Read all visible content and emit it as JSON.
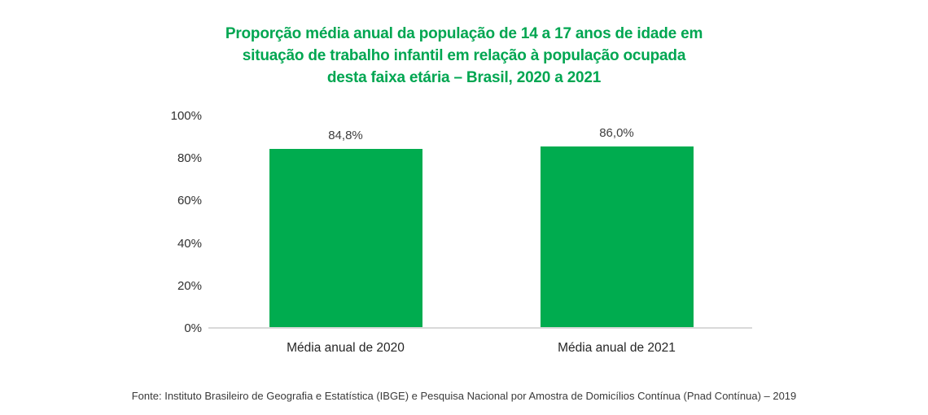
{
  "title": {
    "lines": [
      "Proporção média anual da população de 14 a 17 anos de idade em",
      "situação de trabalho infantil em relação à população ocupada",
      "desta faixa etária – Brasil, 2020 a 2021"
    ],
    "color": "#00a651"
  },
  "chart_data": {
    "type": "bar",
    "title": "Proporção média anual da população de 14 a 17 anos de idade em situação de trabalho infantil em relação à população ocupada desta faixa etária – Brasil, 2020 a 2021",
    "categories": [
      "Média anual de 2020",
      "Média anual de 2021"
    ],
    "values": [
      84.8,
      86.0
    ],
    "value_labels": [
      "84,8%",
      "86,0%"
    ],
    "xlabel": "",
    "ylabel": "",
    "ylim": [
      0,
      100
    ],
    "yticks": [
      0,
      20,
      40,
      60,
      80,
      100
    ],
    "ytick_labels": [
      "0%",
      "20%",
      "40%",
      "60%",
      "80%",
      "100%"
    ],
    "bar_color": "#00ac4f",
    "axis_line_color": "#d9d9d9",
    "grid": false,
    "legend_position": "none"
  },
  "source": "Fonte: Instituto Brasileiro de Geografia e Estatística (IBGE) e Pesquisa Nacional por Amostra de Domicílios Contínua (Pnad Contínua) – 2019"
}
